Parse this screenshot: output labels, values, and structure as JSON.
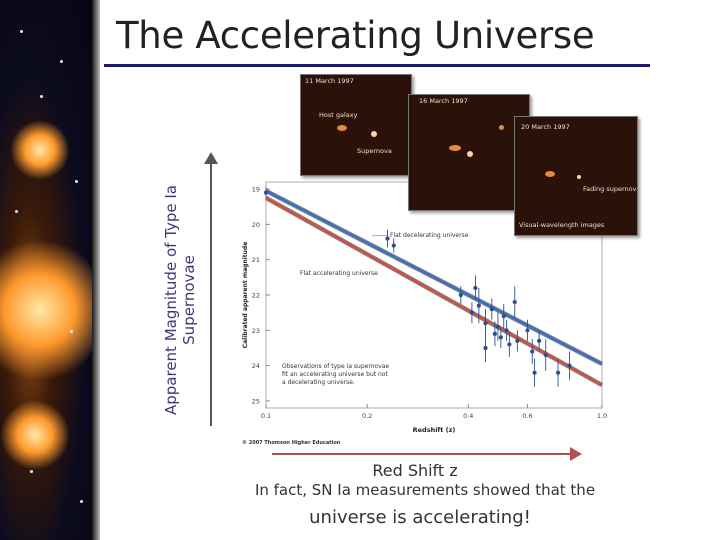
{
  "slide": {
    "title": "The Accelerating Universe",
    "y_axis_annotation": "Apparent Magnitude of Type Ia Supernovae",
    "x_axis_annotation": "Red Shift z",
    "caption_line1": "In fact, SN Ia measurements showed that the",
    "caption_line2": "universe is accelerating!"
  },
  "photos": [
    {
      "date": "11 March 1997",
      "labels": [
        "Host galaxy",
        "Supernova"
      ]
    },
    {
      "date": "16 March 1997",
      "labels": []
    },
    {
      "date": "20 March 1997",
      "labels": [
        "Fading supernova",
        "Visual-wavelength images"
      ]
    }
  ],
  "chart_data": {
    "type": "scatter",
    "title": "",
    "xlabel": "Redshift (z)",
    "ylabel": "Calibrated apparent magnitude",
    "x_ticks": [
      "0.1",
      "0.2",
      "0.4",
      "0.6",
      "1.0"
    ],
    "y_ticks": [
      "19",
      "20",
      "21",
      "22",
      "23",
      "24",
      "25"
    ],
    "ylim": [
      18.8,
      25.2
    ],
    "credit": "© 2007 Thomson Higher Education",
    "series": [
      {
        "name": "Flat decelerating universe",
        "color": "#3a6fc4",
        "line": [
          [
            0.1,
            19.05
          ],
          [
            1.0,
            23.95
          ]
        ]
      },
      {
        "name": "Flat accelerating universe",
        "color": "#d05040",
        "line": [
          [
            0.1,
            19.25
          ],
          [
            1.0,
            24.55
          ]
        ]
      }
    ],
    "annotations": [
      "Flat decelerating universe",
      "Flat accelerating universe",
      "Observations of type Ia supernovae fit an accelerating universe but not a decelerating universe."
    ],
    "points": [
      {
        "x": 0.1,
        "y": 19.1,
        "err": 0.15
      },
      {
        "x": 0.23,
        "y": 20.4,
        "err": 0.25
      },
      {
        "x": 0.24,
        "y": 20.6,
        "err": 0.2
      },
      {
        "x": 0.38,
        "y": 22.0,
        "err": 0.25
      },
      {
        "x": 0.41,
        "y": 22.5,
        "err": 0.3
      },
      {
        "x": 0.43,
        "y": 22.3,
        "err": 0.5
      },
      {
        "x": 0.42,
        "y": 21.8,
        "err": 0.35
      },
      {
        "x": 0.45,
        "y": 22.8,
        "err": 0.4
      },
      {
        "x": 0.47,
        "y": 22.4,
        "err": 0.3
      },
      {
        "x": 0.48,
        "y": 23.1,
        "err": 0.35
      },
      {
        "x": 0.49,
        "y": 22.9,
        "err": 0.4
      },
      {
        "x": 0.5,
        "y": 23.2,
        "err": 0.3
      },
      {
        "x": 0.51,
        "y": 22.6,
        "err": 0.35
      },
      {
        "x": 0.52,
        "y": 23.0,
        "err": 0.3
      },
      {
        "x": 0.53,
        "y": 23.4,
        "err": 0.35
      },
      {
        "x": 0.55,
        "y": 22.2,
        "err": 0.45
      },
      {
        "x": 0.56,
        "y": 23.3,
        "err": 0.3
      },
      {
        "x": 0.45,
        "y": 23.5,
        "err": 0.4
      },
      {
        "x": 0.6,
        "y": 23.0,
        "err": 0.3
      },
      {
        "x": 0.62,
        "y": 23.6,
        "err": 0.35
      },
      {
        "x": 0.63,
        "y": 24.2,
        "err": 0.4
      },
      {
        "x": 0.65,
        "y": 23.3,
        "err": 0.3
      },
      {
        "x": 0.68,
        "y": 23.7,
        "err": 0.45
      },
      {
        "x": 0.74,
        "y": 24.2,
        "err": 0.4
      },
      {
        "x": 0.8,
        "y": 24.0,
        "err": 0.4
      }
    ]
  }
}
